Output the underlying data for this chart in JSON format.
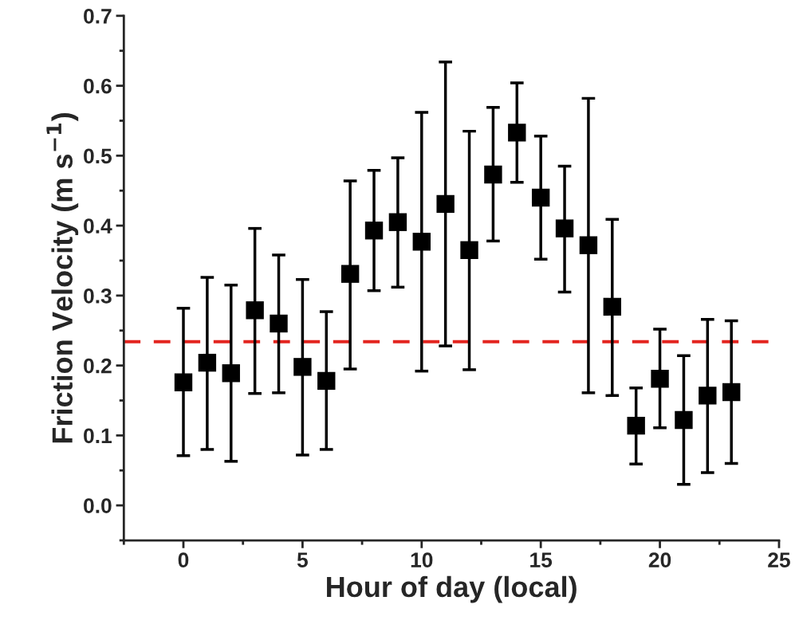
{
  "chart_data": {
    "type": "scatter",
    "xlabel": "Hour of day (local)",
    "ylabel": "Friction Velocity (m s$^{−1}$)",
    "x": [
      0,
      1,
      2,
      3,
      4,
      5,
      6,
      7,
      8,
      9,
      10,
      11,
      12,
      13,
      14,
      15,
      16,
      17,
      18,
      19,
      20,
      21,
      22,
      23
    ],
    "series": [
      {
        "color": "#000000",
        "values": [
          0.176,
          0.204,
          0.189,
          0.279,
          0.26,
          0.198,
          0.178,
          0.331,
          0.393,
          0.405,
          0.377,
          0.431,
          0.365,
          0.473,
          0.533,
          0.44,
          0.396,
          0.372,
          0.284,
          0.114,
          0.181,
          0.122,
          0.157,
          0.162
        ],
        "errors": [
          [
            0.071,
            0.282
          ],
          [
            0.08,
            0.326
          ],
          [
            0.063,
            0.315
          ],
          [
            0.16,
            0.396
          ],
          [
            0.161,
            0.358
          ],
          [
            0.072,
            0.323
          ],
          [
            0.08,
            0.277
          ],
          [
            0.195,
            0.464
          ],
          [
            0.307,
            0.479
          ],
          [
            0.312,
            0.497
          ],
          [
            0.192,
            0.562
          ],
          [
            0.228,
            0.634
          ],
          [
            0.194,
            0.535
          ],
          [
            0.378,
            0.569
          ],
          [
            0.462,
            0.604
          ],
          [
            0.352,
            0.528
          ],
          [
            0.305,
            0.485
          ],
          [
            0.161,
            0.582
          ],
          [
            0.157,
            0.409
          ],
          [
            0.059,
            0.168
          ],
          [
            0.111,
            0.252
          ],
          [
            0.03,
            0.214
          ],
          [
            0.047,
            0.266
          ],
          [
            0.06,
            0.264
          ]
        ]
      }
    ],
    "marker": "square",
    "ref_lines": [
      {
        "axis": "y",
        "value": 0.234,
        "color": "#e3241f",
        "line_style": "dashed"
      }
    ],
    "xlim": [
      -2.5,
      25
    ],
    "xticks": [
      0,
      5,
      10,
      15,
      20,
      25
    ],
    "ylim": [
      -0.05,
      0.7
    ],
    "yticks": [
      {
        "value": 0,
        "label": "0.0"
      },
      0.1,
      0.2,
      0.3,
      0.4,
      0.5,
      0.6,
      0.7
    ],
    "grid": false,
    "legend": false
  }
}
